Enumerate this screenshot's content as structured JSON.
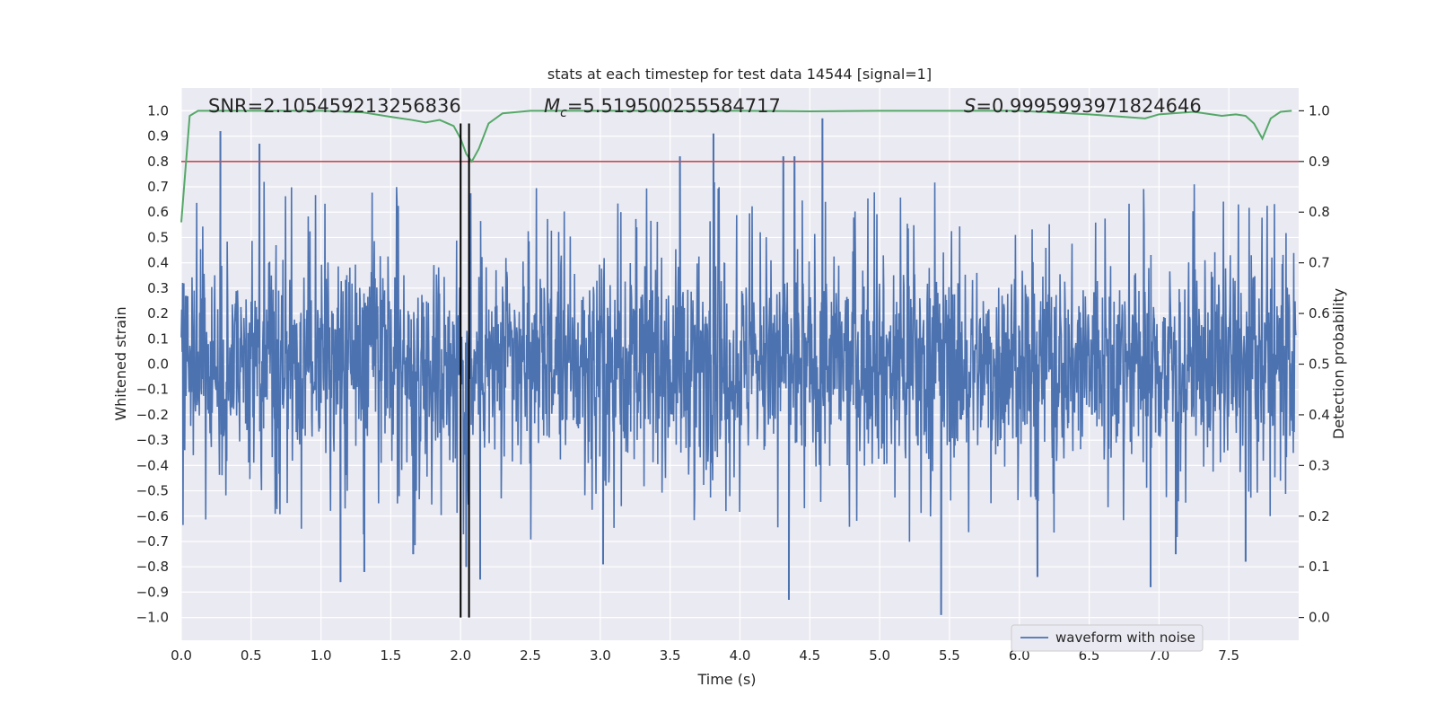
{
  "chart_data": {
    "type": "line",
    "title": "stats at each timestep for test data 14544 [signal=1]",
    "xlabel": "Time (s)",
    "ylabel": "Whitened strain",
    "ylabel_right": "Detection probability",
    "xlim": [
      0.0,
      8.0
    ],
    "ylim": [
      -1.09,
      1.09
    ],
    "ylim_right": [
      -0.045,
      1.045
    ],
    "x_ticks": [
      "0.0",
      "0.5",
      "1.0",
      "1.5",
      "2.0",
      "2.5",
      "3.0",
      "3.5",
      "4.0",
      "4.5",
      "5.0",
      "5.5",
      "6.0",
      "6.5",
      "7.0",
      "7.5"
    ],
    "x_tick_values": [
      0.0,
      0.5,
      1.0,
      1.5,
      2.0,
      2.5,
      3.0,
      3.5,
      4.0,
      4.5,
      5.0,
      5.5,
      6.0,
      6.5,
      7.0,
      7.5
    ],
    "y_ticks": [
      "1.0",
      "0.9",
      "0.8",
      "0.7",
      "0.6",
      "0.5",
      "0.4",
      "0.3",
      "0.2",
      "0.1",
      "0.0",
      "−0.1",
      "−0.2",
      "−0.3",
      "−0.4",
      "−0.5",
      "−0.6",
      "−0.7",
      "−0.8",
      "−0.9",
      "−1.0"
    ],
    "y_tick_values": [
      1.0,
      0.9,
      0.8,
      0.7,
      0.6,
      0.5,
      0.4,
      0.3,
      0.2,
      0.1,
      0.0,
      -0.1,
      -0.2,
      -0.3,
      -0.4,
      -0.5,
      -0.6,
      -0.7,
      -0.8,
      -0.9,
      -1.0
    ],
    "y_right_ticks": [
      "1.0",
      "0.9",
      "0.8",
      "0.7",
      "0.6",
      "0.5",
      "0.4",
      "0.3",
      "0.2",
      "0.1",
      "0.0"
    ],
    "y_right_tick_values": [
      1.0,
      0.9,
      0.8,
      0.7,
      0.6,
      0.5,
      0.4,
      0.3,
      0.2,
      0.1,
      0.0
    ],
    "grid": true,
    "legend_position": "lower-right",
    "annotations": {
      "snr_text": "SNR=2.105459213256836",
      "mc_symbol": "M",
      "mc_subscript": "c",
      "mc_value": "=5.519500255584717",
      "s_symbol": "S",
      "s_value": "=0.9995993971824646"
    },
    "series": [
      {
        "name": "waveform with noise",
        "axis": "left",
        "color": "#4c72b0",
        "envelope_note": "dense noisy strain, samples across 0–8 s",
        "spikes": [
          {
            "x": 0.28,
            "y": 0.92
          },
          {
            "x": 0.56,
            "y": 0.87
          },
          {
            "x": 3.57,
            "y": 0.82
          },
          {
            "x": 3.81,
            "y": 0.91
          },
          {
            "x": 4.31,
            "y": 0.82
          },
          {
            "x": 4.39,
            "y": 0.82
          },
          {
            "x": 4.59,
            "y": 0.97
          },
          {
            "x": 1.14,
            "y": -0.86
          },
          {
            "x": 1.31,
            "y": -0.82
          },
          {
            "x": 1.66,
            "y": -0.75
          },
          {
            "x": 2.04,
            "y": -0.8
          },
          {
            "x": 2.14,
            "y": -0.85
          },
          {
            "x": 3.02,
            "y": -0.79
          },
          {
            "x": 4.35,
            "y": -0.93
          },
          {
            "x": 5.44,
            "y": -0.99
          },
          {
            "x": 6.13,
            "y": -0.84
          },
          {
            "x": 6.94,
            "y": -0.88
          },
          {
            "x": 7.12,
            "y": -0.75
          },
          {
            "x": 7.62,
            "y": -0.78
          }
        ]
      },
      {
        "name": "",
        "axis": "right",
        "color": "#55a868",
        "x": [
          0.0,
          0.06,
          0.12,
          0.3,
          0.6,
          1.0,
          1.3,
          1.5,
          1.65,
          1.75,
          1.85,
          1.95,
          2.0,
          2.04,
          2.08,
          2.13,
          2.2,
          2.3,
          2.5,
          3.0,
          3.5,
          4.0,
          4.5,
          5.0,
          5.5,
          6.0,
          6.5,
          6.9,
          7.0,
          7.25,
          7.45,
          7.55,
          7.62,
          7.68,
          7.74,
          7.8,
          7.87,
          7.95
        ],
        "y": [
          0.78,
          0.99,
          1.0,
          1.0,
          1.0,
          1.0,
          0.997,
          0.988,
          0.982,
          0.977,
          0.982,
          0.97,
          0.945,
          0.915,
          0.9,
          0.925,
          0.975,
          0.995,
          1.0,
          1.0,
          1.0,
          1.0,
          0.999,
          1.0,
          1.0,
          1.0,
          0.993,
          0.985,
          0.993,
          0.998,
          0.99,
          0.993,
          0.99,
          0.975,
          0.945,
          0.985,
          0.998,
          1.0
        ]
      },
      {
        "name": "",
        "axis": "right",
        "type": "hline",
        "color": "#c44e52",
        "y": 0.9
      }
    ],
    "vertical_markers": [
      {
        "x": 2.0,
        "ymin": -1.0,
        "ymax": 0.95,
        "color": "#000000"
      },
      {
        "x": 2.06,
        "ymin": -1.0,
        "ymax": 0.95,
        "color": "#000000"
      }
    ]
  }
}
